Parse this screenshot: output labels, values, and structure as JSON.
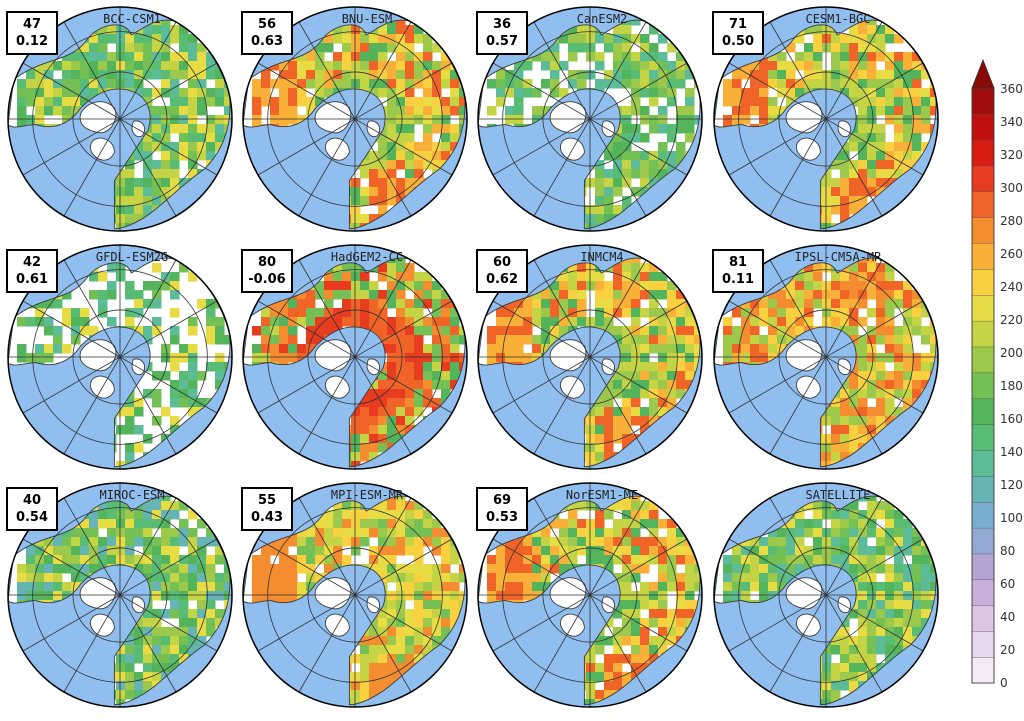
{
  "panels": [
    {
      "title": "BCC-CSM1",
      "stat_top": "47",
      "stat_bottom": "0.12",
      "pattern": "green"
    },
    {
      "title": "BNU-ESM",
      "stat_top": "56",
      "stat_bottom": "0.63",
      "pattern": "red-west-east"
    },
    {
      "title": "CanESM2",
      "stat_top": "36",
      "stat_bottom": "0.57",
      "pattern": "green-white"
    },
    {
      "title": "CESM1-BGC",
      "stat_top": "71",
      "stat_bottom": "0.50",
      "pattern": "red-west-east"
    },
    {
      "title": "GFDL-ESM2G",
      "stat_top": "42",
      "stat_bottom": "0.61",
      "pattern": "sparse"
    },
    {
      "title": "HadGEM2-CC",
      "stat_top": "80",
      "stat_bottom": "-0.06",
      "pattern": "red-ring"
    },
    {
      "title": "INMCM4",
      "stat_top": "60",
      "stat_bottom": "0.62",
      "pattern": "red-west-east"
    },
    {
      "title": "IPSL-CM5A-MR",
      "stat_top": "81",
      "stat_bottom": "0.11",
      "pattern": "orange"
    },
    {
      "title": "MIROC-ESM",
      "stat_top": "40",
      "stat_bottom": "0.54",
      "pattern": "green-yellow"
    },
    {
      "title": "MPI-ESM-MR",
      "stat_top": "55",
      "stat_bottom": "0.43",
      "pattern": "yellow-red"
    },
    {
      "title": "NorESM1-ME",
      "stat_top": "69",
      "stat_bottom": "0.53",
      "pattern": "red-west-east"
    },
    {
      "title": "SATELLITE",
      "stat_top": "",
      "stat_bottom": "",
      "pattern": "green"
    }
  ],
  "colorbar": {
    "tick_labels": [
      "0",
      "20",
      "40",
      "60",
      "80",
      "100",
      "120",
      "140",
      "160",
      "180",
      "200",
      "220",
      "240",
      "260",
      "280",
      "300",
      "320",
      "340",
      "360"
    ],
    "colors": [
      "#f5eaf5",
      "#ead9ee",
      "#dcc6e4",
      "#c9b0da",
      "#b4a4d4",
      "#94a8d4",
      "#7aaed0",
      "#66b4b4",
      "#5cbc98",
      "#58bc74",
      "#54b45c",
      "#74c054",
      "#9cc84c",
      "#c4d444",
      "#e8dc44",
      "#f8d040",
      "#f8b038",
      "#f48c30",
      "#f06428",
      "#e83c20",
      "#d81c14",
      "#c01010",
      "#a00c0c"
    ],
    "max_color": "#8a0a0a"
  },
  "colors": {
    "ocean": "#8fbeef",
    "land_empty": "#ffffff",
    "coast": "#3a3a3a",
    "grid": "#333333",
    "frame": "#000000"
  }
}
